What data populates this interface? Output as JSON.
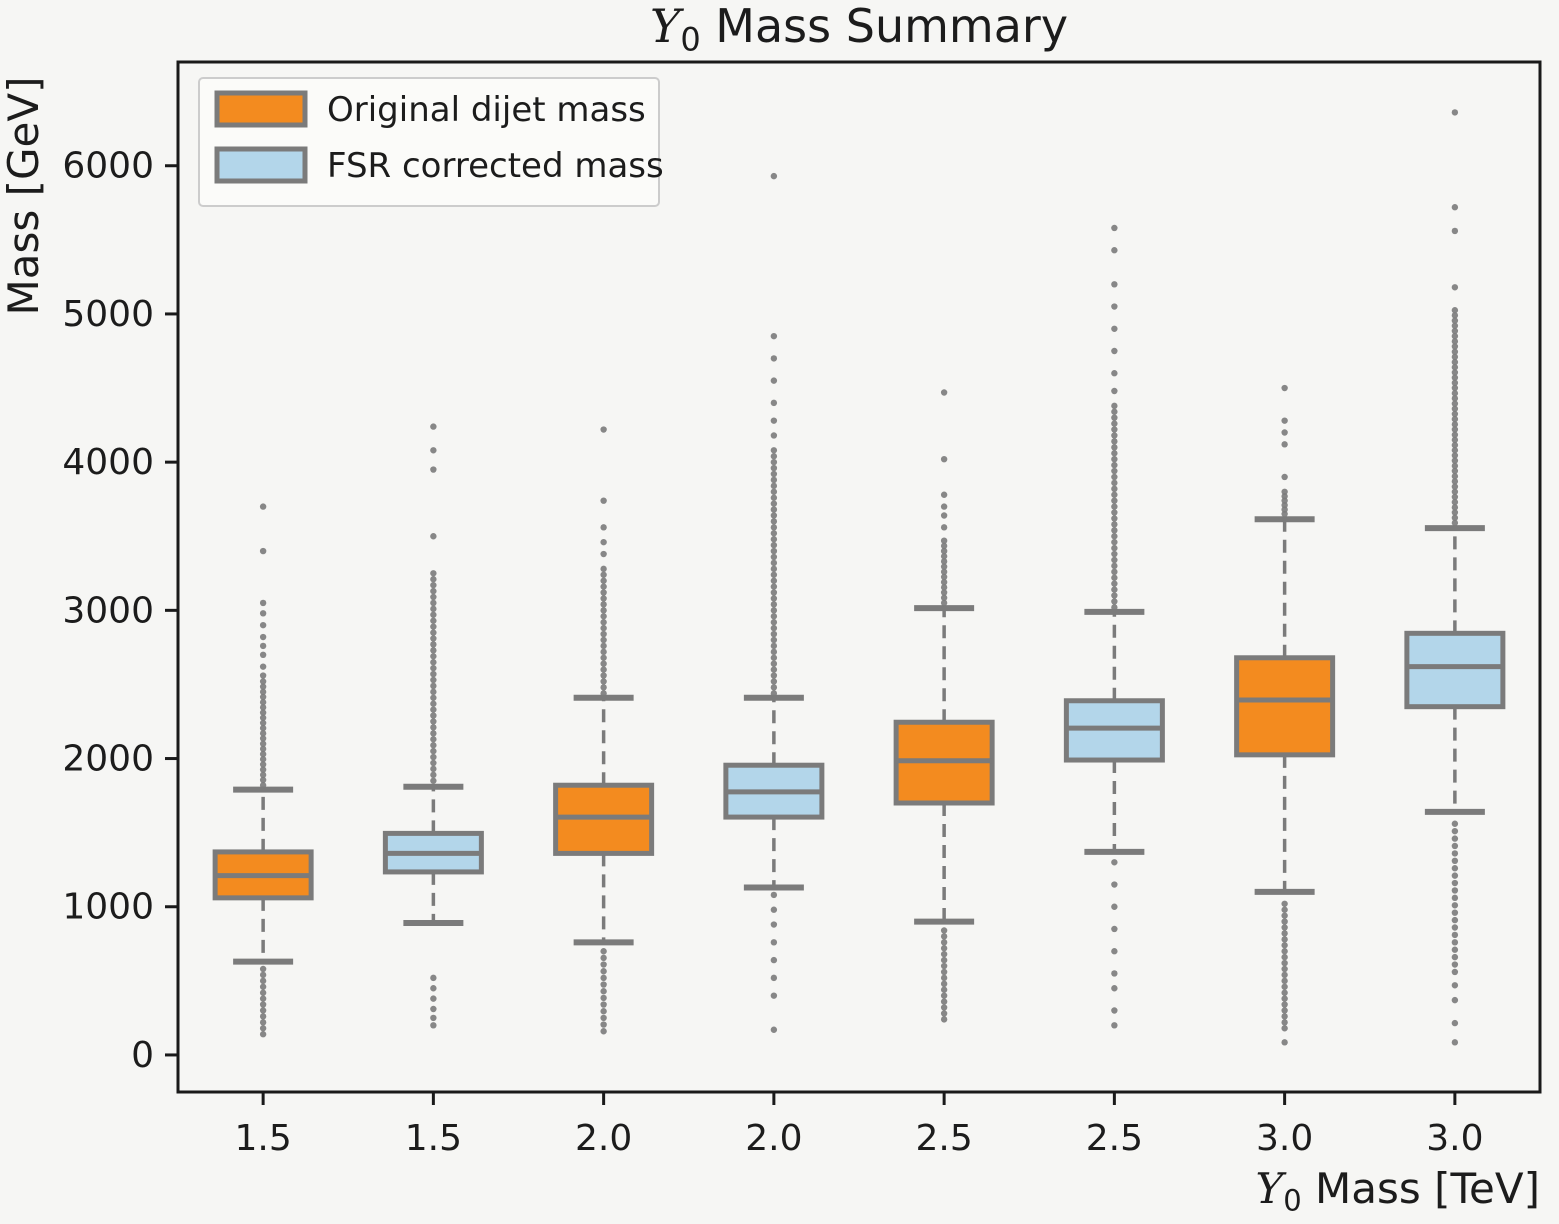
{
  "figure": {
    "background_color": "#f6f6f4",
    "text_color": "#1c1c1c",
    "spine_color": "#1a1a1a"
  },
  "legend": {
    "position": "upper-left",
    "items": [
      {
        "label": "Original dijet mass",
        "swatch": "box-patch",
        "color": "#f38b1f",
        "edge_color": "#7b7b7b"
      },
      {
        "label": "FSR corrected mass",
        "swatch": "box-patch",
        "color": "#b3d6ea",
        "edge_color": "#7b7b7b"
      }
    ]
  },
  "chart_data": {
    "type": "boxplot",
    "title": "Y₀ Mass Summary",
    "xlabel": "Y₀ Mass [TeV]",
    "ylabel": "Mass [GeV]",
    "units": "GeV",
    "categories": [
      "1.5",
      "1.5",
      "2.0",
      "2.0",
      "2.5",
      "2.5",
      "3.0",
      "3.0"
    ],
    "yticks": [
      0,
      1000,
      2000,
      3000,
      4000,
      5000,
      6000
    ],
    "ylim": [
      -250,
      6700
    ],
    "grid": false,
    "legend_position": "upper left",
    "style": {
      "orange": "#f38b1f",
      "blue": "#b3d6ea",
      "line_gray": "#7b7b7b",
      "whisker_dash": "13 8"
    },
    "boxes": [
      {
        "category": "1.5",
        "series": "Original dijet mass",
        "color_key": "orange",
        "whisker_low": 630,
        "q1": 1060,
        "median": 1210,
        "q3": 1370,
        "whisker_high": 1790,
        "outliers_high": {
          "dense_range": [
            1820,
            2520,
            35
          ],
          "points": [
            2560,
            2620,
            2700,
            2760,
            2820,
            2900,
            2980,
            3050,
            3400,
            3700
          ]
        },
        "outliers_low": {
          "dense_range": [
            140,
            580,
            40
          ],
          "points": []
        }
      },
      {
        "category": "1.5",
        "series": "FSR corrected mass",
        "color_key": "blue",
        "whisker_low": 890,
        "q1": 1235,
        "median": 1360,
        "q3": 1495,
        "whisker_high": 1810,
        "outliers_high": {
          "dense_range": [
            1850,
            3280,
            40
          ],
          "points": [
            3500,
            3950,
            4080,
            4240
          ]
        },
        "outliers_low": {
          "dense_range": [],
          "points": [
            520,
            450,
            380,
            310,
            250,
            200
          ]
        }
      },
      {
        "category": "2.0",
        "series": "Original dijet mass",
        "color_key": "orange",
        "whisker_low": 760,
        "q1": 1360,
        "median": 1605,
        "q3": 1820,
        "whisker_high": 2410,
        "outliers_high": {
          "dense_range": [
            2440,
            3300,
            40
          ],
          "points": [
            3380,
            3460,
            3560,
            3740,
            4220
          ]
        },
        "outliers_low": {
          "dense_range": [
            160,
            730,
            45
          ],
          "points": []
        }
      },
      {
        "category": "2.0",
        "series": "FSR corrected mass",
        "color_key": "blue",
        "whisker_low": 1130,
        "q1": 1605,
        "median": 1775,
        "q3": 1955,
        "whisker_high": 2410,
        "outliers_high": {
          "dense_range": [
            2440,
            4100,
            40
          ],
          "points": [
            4180,
            4280,
            4400,
            4550,
            4700,
            4850,
            5930
          ]
        },
        "outliers_low": {
          "dense_range": [],
          "points": [
            1080,
            980,
            880,
            760,
            640,
            520,
            400,
            170
          ]
        }
      },
      {
        "category": "2.5",
        "series": "Original dijet mass",
        "color_key": "orange",
        "whisker_low": 900,
        "q1": 1700,
        "median": 1985,
        "q3": 2245,
        "whisker_high": 3015,
        "outliers_high": {
          "dense_range": [
            3050,
            3500,
            35
          ],
          "points": [
            3560,
            3640,
            3700,
            3780,
            4020,
            4470
          ]
        },
        "outliers_low": {
          "dense_range": [
            240,
            870,
            40
          ],
          "points": []
        }
      },
      {
        "category": "2.5",
        "series": "FSR corrected mass",
        "color_key": "blue",
        "whisker_low": 1370,
        "q1": 1990,
        "median": 2205,
        "q3": 2390,
        "whisker_high": 2990,
        "outliers_high": {
          "dense_range": [
            3020,
            4400,
            40
          ],
          "points": [
            4480,
            4600,
            4750,
            4900,
            5050,
            5200,
            5430,
            5580
          ]
        },
        "outliers_low": {
          "dense_range": [],
          "points": [
            1300,
            1150,
            1000,
            850,
            700,
            550,
            450,
            300,
            200
          ]
        }
      },
      {
        "category": "3.0",
        "series": "Original dijet mass",
        "color_key": "orange",
        "whisker_low": 1100,
        "q1": 2025,
        "median": 2395,
        "q3": 2680,
        "whisker_high": 3615,
        "outliers_high": {
          "dense_range": [
            3650,
            3820,
            30
          ],
          "points": [
            3900,
            4120,
            4200,
            4280,
            4500
          ]
        },
        "outliers_low": {
          "dense_range": [
            180,
            1050,
            40
          ],
          "points": [
            85
          ]
        }
      },
      {
        "category": "3.0",
        "series": "FSR corrected mass",
        "color_key": "blue",
        "whisker_low": 1640,
        "q1": 2350,
        "median": 2620,
        "q3": 2845,
        "whisker_high": 3555,
        "outliers_high": {
          "dense_range": [
            3590,
            5030,
            35
          ],
          "points": [
            5180,
            5560,
            5720,
            6360
          ]
        },
        "outliers_low": {
          "dense_range": [
            560,
            1600,
            50
          ],
          "points": [
            470,
            370,
            215,
            85
          ]
        }
      }
    ]
  }
}
